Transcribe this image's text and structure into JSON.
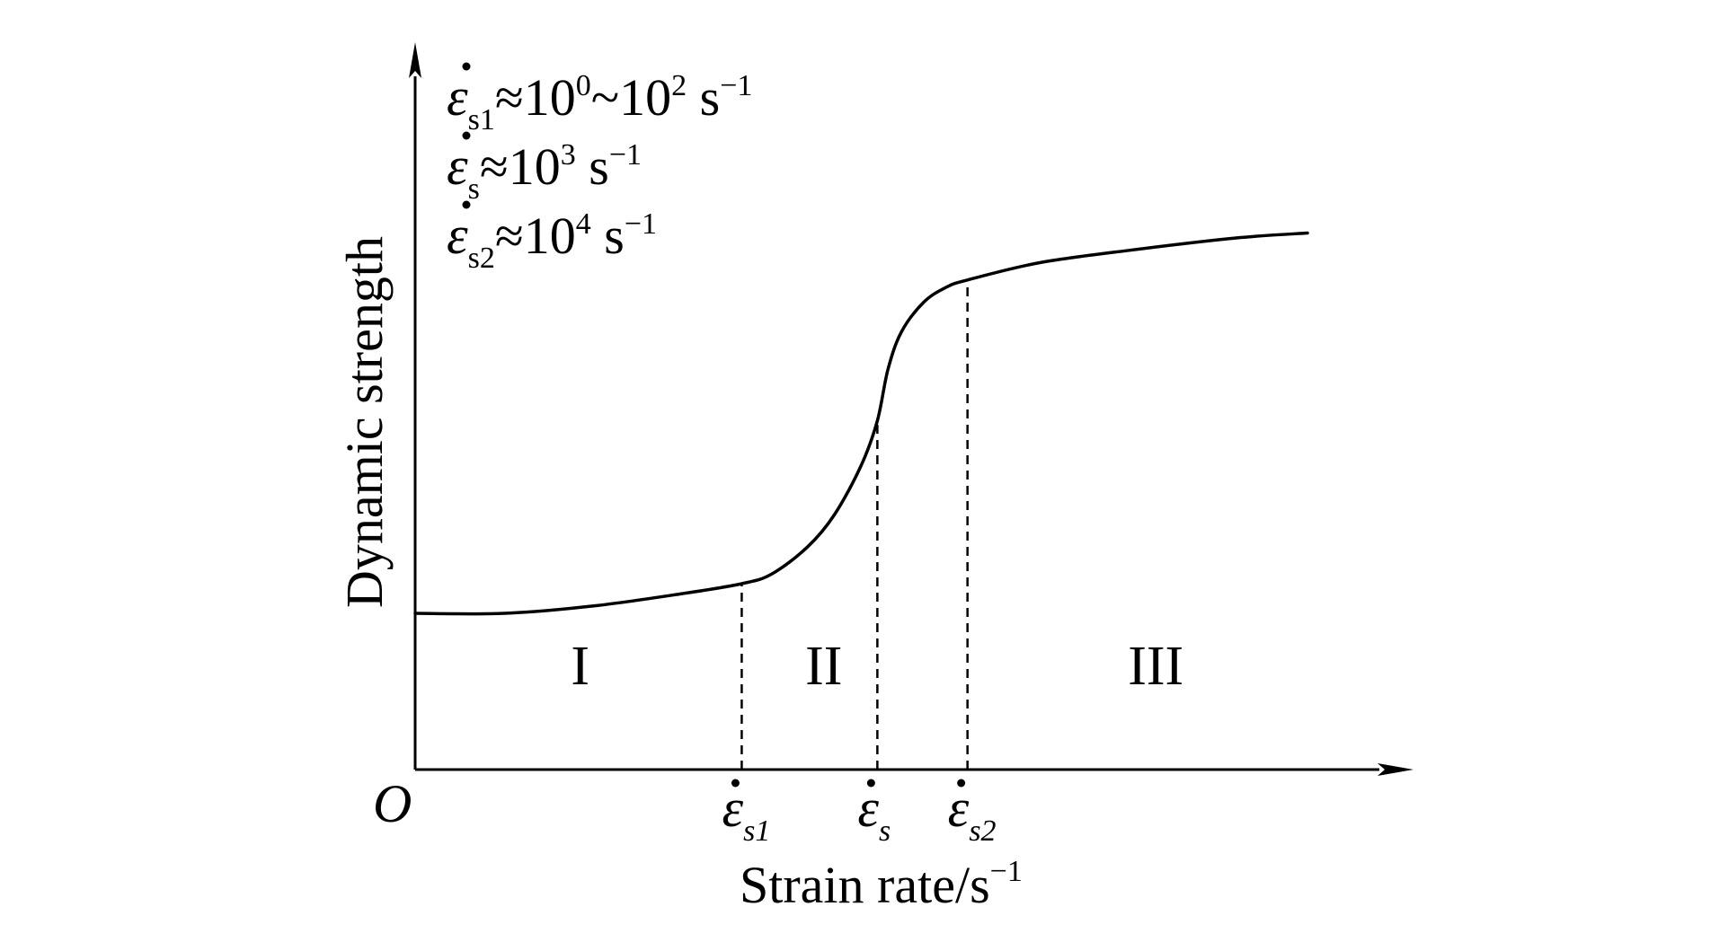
{
  "chart_data": {
    "type": "line",
    "title": "",
    "xlabel": "Strain rate/s",
    "xlabel_sup": "−1",
    "ylabel": "Dynamic strength",
    "origin_label": "O",
    "axis_ticks": false,
    "grid": false,
    "critical_points": [
      {
        "symbol": "ε",
        "sub": "s1",
        "x": 0.366
      },
      {
        "symbol": "ε",
        "sub": "s",
        "x": 0.518
      },
      {
        "symbol": "ε",
        "sub": "s2",
        "x": 0.619
      }
    ],
    "regions": [
      {
        "label": "I",
        "x": 0.185
      },
      {
        "label": "II",
        "x": 0.458
      },
      {
        "label": "III",
        "x": 0.83
      }
    ],
    "annotations": [
      {
        "symbol": "ε",
        "sub": "s1",
        "relation": "≈",
        "text": "10",
        "sup": "0",
        "text2": "~10",
        "sup2": "2",
        "unit": " s",
        "unit_sup": "−1"
      },
      {
        "symbol": "ε",
        "sub": "s",
        "relation": "≈",
        "text": "10",
        "sup": "3",
        "text2": "",
        "sup2": "",
        "unit": " s",
        "unit_sup": "−1"
      },
      {
        "symbol": "ε",
        "sub": "s2",
        "relation": "≈",
        "text": "10",
        "sup": "4",
        "text2": "",
        "sup2": "",
        "unit": " s",
        "unit_sup": "−1"
      }
    ],
    "series": [
      {
        "x": [
          0.0,
          0.1,
          0.2,
          0.3,
          0.366,
          0.4,
          0.44,
          0.47,
          0.5,
          0.518,
          0.53,
          0.545,
          0.57,
          0.595,
          0.619,
          0.7,
          0.8,
          0.92,
          1.0
        ],
        "y": [
          0.0,
          0.0,
          0.03,
          0.08,
          0.12,
          0.16,
          0.27,
          0.4,
          0.6,
          0.78,
          0.99,
          1.14,
          1.26,
          1.32,
          1.35,
          1.42,
          1.47,
          1.52,
          1.54
        ]
      }
    ]
  }
}
